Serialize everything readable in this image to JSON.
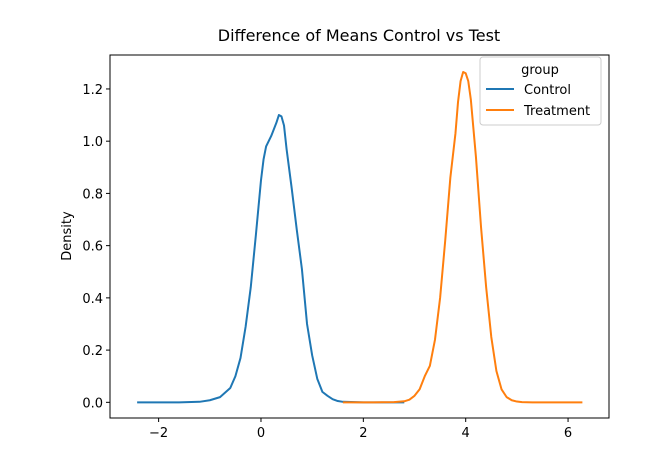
{
  "chart_data": {
    "type": "line",
    "title": "Difference of Means Control vs Test",
    "xlabel": "",
    "ylabel": "Density",
    "xlim": [
      -2.95,
      6.8
    ],
    "ylim": [
      -0.06,
      1.33
    ],
    "xticks": [
      -2,
      0,
      2,
      4,
      6
    ],
    "xtick_labels": [
      "−2",
      "0",
      "2",
      "4",
      "6"
    ],
    "yticks": [
      0.0,
      0.2,
      0.4,
      0.6,
      0.8,
      1.0,
      1.2
    ],
    "ytick_labels": [
      "0.0",
      "0.2",
      "0.4",
      "0.6",
      "0.8",
      "1.0",
      "1.2"
    ],
    "grid": false,
    "legend": {
      "title": "group",
      "position": "top-right"
    },
    "series": [
      {
        "name": "Control",
        "color": "#1f77b4",
        "x": [
          -2.42,
          -1.6,
          -1.2,
          -1.0,
          -0.8,
          -0.6,
          -0.5,
          -0.4,
          -0.3,
          -0.2,
          -0.1,
          0.0,
          0.05,
          0.1,
          0.2,
          0.3,
          0.35,
          0.4,
          0.45,
          0.5,
          0.6,
          0.7,
          0.8,
          0.9,
          1.0,
          1.1,
          1.2,
          1.3,
          1.4,
          1.5,
          1.6,
          2.0,
          2.8
        ],
        "y": [
          0.0,
          0.0,
          0.002,
          0.008,
          0.02,
          0.055,
          0.1,
          0.17,
          0.29,
          0.44,
          0.64,
          0.85,
          0.93,
          0.98,
          1.02,
          1.07,
          1.1,
          1.095,
          1.06,
          0.97,
          0.82,
          0.66,
          0.51,
          0.3,
          0.18,
          0.09,
          0.04,
          0.025,
          0.012,
          0.005,
          0.002,
          0.0,
          0.0
        ]
      },
      {
        "name": "Treatment",
        "color": "#ff7f0e",
        "x": [
          1.6,
          2.2,
          2.6,
          2.8,
          2.9,
          3.0,
          3.1,
          3.2,
          3.3,
          3.4,
          3.5,
          3.6,
          3.7,
          3.8,
          3.85,
          3.9,
          3.95,
          4.0,
          4.05,
          4.1,
          4.2,
          4.3,
          4.4,
          4.5,
          4.6,
          4.7,
          4.8,
          4.9,
          5.0,
          5.1,
          5.3,
          6.0,
          6.28
        ],
        "y": [
          0.0,
          0.0,
          0.001,
          0.004,
          0.01,
          0.025,
          0.05,
          0.1,
          0.14,
          0.24,
          0.4,
          0.62,
          0.86,
          1.03,
          1.15,
          1.23,
          1.265,
          1.26,
          1.23,
          1.16,
          0.94,
          0.67,
          0.44,
          0.25,
          0.12,
          0.05,
          0.02,
          0.008,
          0.003,
          0.001,
          0.0,
          0.0,
          0.0
        ]
      }
    ]
  }
}
